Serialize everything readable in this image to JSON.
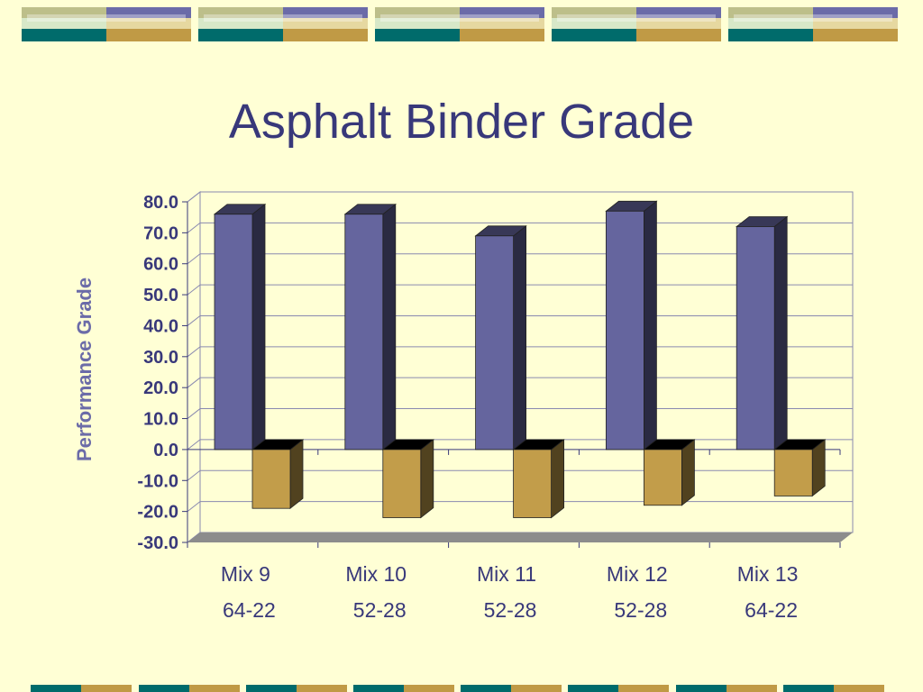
{
  "slide": {
    "title": "Asphalt Binder Grade"
  },
  "colors": {
    "background": "#FFFFD5",
    "title": "#38387A",
    "banner_olive": "#BDBF8A",
    "banner_purple": "#6B6BA8",
    "banner_teal": "#006B6B",
    "banner_gold": "#C09A45",
    "banner_light": "#D7E8C8"
  },
  "chart_data": {
    "type": "bar",
    "categories": [
      [
        "Mix 9",
        "64-22"
      ],
      [
        "Mix 10",
        "52-28"
      ],
      [
        "Mix 11",
        "52-28"
      ],
      [
        "Mix 12",
        "52-28"
      ],
      [
        "Mix 13",
        "64-22"
      ]
    ],
    "series": [
      {
        "values": [
          76,
          76,
          69,
          77,
          72
        ],
        "color": "#65659E"
      },
      {
        "values": [
          -19,
          -22,
          -22,
          -18,
          -15
        ],
        "color": "#C29D4A"
      }
    ],
    "ylabel": "Performance Grade",
    "xlabel": "",
    "ylim": [
      -30,
      80
    ],
    "yticks": [
      "80.0",
      "70.0",
      "60.0",
      "50.0",
      "40.0",
      "30.0",
      "20.0",
      "10.0",
      "0.0",
      "-10.0",
      "-20.0",
      "-30.0"
    ],
    "grid": true,
    "legend": "none"
  }
}
